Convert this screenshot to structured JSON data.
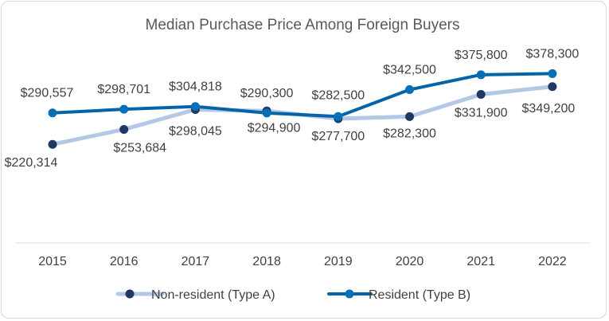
{
  "chart_data": {
    "type": "line",
    "title": "Median Purchase Price Among Foreign Buyers",
    "xlabel": "",
    "ylabel": "",
    "x": [
      "2015",
      "2016",
      "2017",
      "2018",
      "2019",
      "2020",
      "2021",
      "2022"
    ],
    "ylim": [
      0,
      420000
    ],
    "grid": false,
    "legend_position": "bottom",
    "series": [
      {
        "name": "Non-resident (Type A)",
        "values": [
          220314,
          253684,
          298045,
          294900,
          277700,
          282300,
          331900,
          349200
        ],
        "labels": [
          "$220,314",
          "$253,684",
          "$298,045",
          "$294,900",
          "$277,700",
          "$282,300",
          "$331,900",
          "$349,200"
        ],
        "line_color": "#b4c7e7",
        "marker_color": "#1f3864"
      },
      {
        "name": "Resident (Type B)",
        "values": [
          290557,
          298701,
          304818,
          290300,
          282500,
          342500,
          375800,
          378300
        ],
        "labels": [
          "$290,557",
          "$298,701",
          "$304,818",
          "$290,300",
          "$282,500",
          "$342,500",
          "$375,800",
          "$378,300"
        ],
        "line_color": "#0563a8",
        "marker_color": "#0570b8"
      }
    ]
  }
}
